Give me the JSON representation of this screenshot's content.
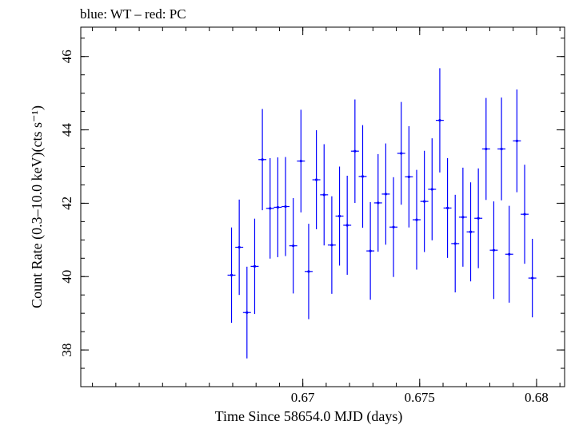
{
  "chart_data": {
    "type": "scatter",
    "title": "blue: WT – red: PC",
    "xlabel": "Time Since 58654.0 MJD (days)",
    "ylabel": "Count Rate (0.3–10.0 keV)(cts s⁻¹)",
    "xlim": [
      0.6605,
      0.6812
    ],
    "ylim": [
      37.0,
      46.8
    ],
    "xticks": [
      {
        "value": 0.67,
        "label": "0.67"
      },
      {
        "value": 0.675,
        "label": "0.675"
      },
      {
        "value": 0.68,
        "label": "0.68"
      }
    ],
    "yticks": [
      {
        "value": 38,
        "label": "38"
      },
      {
        "value": 40,
        "label": "40"
      },
      {
        "value": 42,
        "label": "42"
      },
      {
        "value": 44,
        "label": "44"
      },
      {
        "value": 46,
        "label": "46"
      }
    ],
    "x_minor_step": 0.001,
    "y_minor_step": 0.5,
    "grid": false,
    "series": [
      {
        "name": "WT",
        "color": "#0000ff",
        "x_half_width": 0.00017,
        "points": [
          {
            "x": 0.66695,
            "y": 40.04,
            "yerr": 1.3
          },
          {
            "x": 0.66728,
            "y": 40.8,
            "yerr": 1.3
          },
          {
            "x": 0.66761,
            "y": 39.02,
            "yerr": 1.25
          },
          {
            "x": 0.66794,
            "y": 40.28,
            "yerr": 1.3
          },
          {
            "x": 0.66827,
            "y": 43.19,
            "yerr": 1.38
          },
          {
            "x": 0.6686,
            "y": 41.86,
            "yerr": 1.37
          },
          {
            "x": 0.66893,
            "y": 41.89,
            "yerr": 1.36
          },
          {
            "x": 0.66926,
            "y": 41.91,
            "yerr": 1.35
          },
          {
            "x": 0.66959,
            "y": 40.84,
            "yerr": 1.3
          },
          {
            "x": 0.66992,
            "y": 43.15,
            "yerr": 1.4
          },
          {
            "x": 0.67025,
            "y": 40.14,
            "yerr": 1.3
          },
          {
            "x": 0.67058,
            "y": 42.64,
            "yerr": 1.35
          },
          {
            "x": 0.67091,
            "y": 42.23,
            "yerr": 1.38
          },
          {
            "x": 0.67124,
            "y": 40.86,
            "yerr": 1.33
          },
          {
            "x": 0.67157,
            "y": 41.65,
            "yerr": 1.35
          },
          {
            "x": 0.6719,
            "y": 41.4,
            "yerr": 1.35
          },
          {
            "x": 0.67223,
            "y": 43.42,
            "yerr": 1.41
          },
          {
            "x": 0.67256,
            "y": 42.73,
            "yerr": 1.4
          },
          {
            "x": 0.67289,
            "y": 40.7,
            "yerr": 1.33
          },
          {
            "x": 0.67322,
            "y": 42.01,
            "yerr": 1.33
          },
          {
            "x": 0.67355,
            "y": 42.25,
            "yerr": 1.38
          },
          {
            "x": 0.67388,
            "y": 41.35,
            "yerr": 1.36
          },
          {
            "x": 0.67421,
            "y": 43.36,
            "yerr": 1.4
          },
          {
            "x": 0.67454,
            "y": 42.72,
            "yerr": 1.38
          },
          {
            "x": 0.67487,
            "y": 41.55,
            "yerr": 1.36
          },
          {
            "x": 0.6752,
            "y": 42.05,
            "yerr": 1.38
          },
          {
            "x": 0.67553,
            "y": 42.38,
            "yerr": 1.39
          },
          {
            "x": 0.67586,
            "y": 44.26,
            "yerr": 1.42
          },
          {
            "x": 0.67619,
            "y": 41.87,
            "yerr": 1.36
          },
          {
            "x": 0.67652,
            "y": 40.9,
            "yerr": 1.33
          },
          {
            "x": 0.67685,
            "y": 41.62,
            "yerr": 1.35
          },
          {
            "x": 0.67718,
            "y": 41.22,
            "yerr": 1.35
          },
          {
            "x": 0.67751,
            "y": 41.59,
            "yerr": 1.36
          },
          {
            "x": 0.67784,
            "y": 43.48,
            "yerr": 1.39
          },
          {
            "x": 0.67817,
            "y": 40.72,
            "yerr": 1.33
          },
          {
            "x": 0.6785,
            "y": 43.48,
            "yerr": 1.4
          },
          {
            "x": 0.67883,
            "y": 40.61,
            "yerr": 1.32
          },
          {
            "x": 0.67916,
            "y": 43.7,
            "yerr": 1.4
          },
          {
            "x": 0.67949,
            "y": 41.7,
            "yerr": 1.35
          },
          {
            "x": 0.67982,
            "y": 39.96,
            "yerr": 1.07
          }
        ]
      }
    ]
  }
}
